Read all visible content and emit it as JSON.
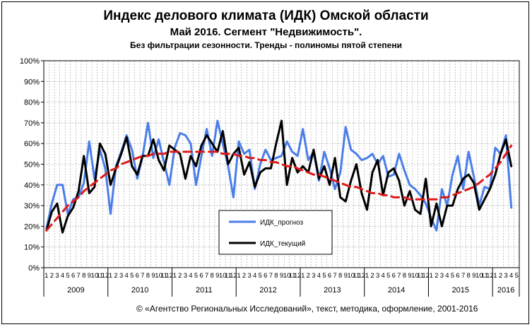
{
  "header": {
    "title": "Индекс делового климата (ИДК) Омской области",
    "subtitle": "Май 2016. Сегмент \"Недвижимость\".",
    "note": "Без фильтрации  сезонности. Тренды  -  полиномы  пятой  степени"
  },
  "footer": {
    "copyright": "© «Агентство Региональных Исследований», текст, методика, оформление, 2001-2016"
  },
  "chart_data": {
    "type": "line",
    "ylim": [
      0,
      100
    ],
    "yticks": [
      "0%",
      "10%",
      "20%",
      "30%",
      "40%",
      "50%",
      "60%",
      "70%",
      "80%",
      "90%",
      "100%"
    ],
    "years": [
      {
        "label": "2009",
        "months": 12
      },
      {
        "label": "2010",
        "months": 12
      },
      {
        "label": "2011",
        "months": 12
      },
      {
        "label": "2012",
        "months": 12
      },
      {
        "label": "2013",
        "months": 12
      },
      {
        "label": "2014",
        "months": 12
      },
      {
        "label": "2015",
        "months": 12
      },
      {
        "label": "2016",
        "months": 5
      }
    ],
    "series": [
      {
        "name": "ИДК_прогноз",
        "color": "#4a7ee8",
        "values": [
          19,
          31,
          40,
          40,
          26,
          33,
          34,
          41,
          61,
          43,
          57,
          48,
          26,
          49,
          56,
          64,
          57,
          43,
          54,
          70,
          53,
          62,
          51,
          40,
          58,
          65,
          64,
          60,
          40,
          54,
          67,
          54,
          71,
          60,
          49,
          34,
          61,
          55,
          57,
          38,
          50,
          57,
          52,
          53,
          54,
          61,
          56,
          54,
          67,
          52,
          56,
          42,
          56,
          48,
          38,
          46,
          68,
          57,
          55,
          52,
          53,
          55,
          50,
          54,
          44,
          45,
          55,
          47,
          40,
          38,
          35,
          31,
          24,
          18,
          38,
          30,
          45,
          54,
          38,
          56,
          44,
          30,
          39,
          38,
          58,
          55,
          64,
          29
        ]
      },
      {
        "name": "ИДК_текущий",
        "color": "#000000",
        "values": [
          18,
          27,
          31,
          17,
          25,
          29,
          37,
          54,
          36,
          39,
          60,
          55,
          40,
          48,
          55,
          63,
          49,
          45,
          54,
          54,
          62,
          52,
          47,
          59,
          57,
          55,
          43,
          54,
          49,
          59,
          64,
          60,
          56,
          66,
          50,
          55,
          58,
          45,
          51,
          39,
          46,
          48,
          48,
          60,
          71,
          40,
          53,
          46,
          49,
          46,
          57,
          43,
          49,
          40,
          53,
          34,
          32,
          42,
          50,
          36,
          28,
          46,
          52,
          35,
          46,
          48,
          42,
          30,
          37,
          28,
          26,
          43,
          20,
          31,
          20,
          30,
          30,
          38,
          43,
          45,
          41,
          28,
          33,
          38,
          45,
          55,
          62,
          49
        ]
      },
      {
        "name": "",
        "color": "#dd1a1a",
        "dashed": true,
        "values": [
          18,
          21,
          24,
          27,
          30,
          32,
          34,
          37,
          39,
          41,
          43,
          45,
          47,
          48,
          50,
          51,
          52,
          53,
          54,
          54,
          55,
          55,
          55,
          56,
          56,
          56,
          56,
          56,
          56,
          56,
          56,
          56,
          56,
          55,
          55,
          55,
          54,
          54,
          53,
          53,
          52,
          52,
          51,
          51,
          50,
          49,
          49,
          48,
          47,
          46,
          45,
          45,
          44,
          43,
          42,
          41,
          40,
          39,
          39,
          38,
          37,
          36,
          36,
          35,
          35,
          34,
          34,
          34,
          33,
          33,
          33,
          33,
          33,
          33,
          34,
          34,
          35,
          36,
          37,
          38,
          39,
          41,
          43,
          45,
          48,
          51,
          55,
          59
        ]
      }
    ],
    "legend": {
      "position": "bottom-center",
      "entries": [
        "ИДК_прогноз",
        "ИДК_текущий"
      ]
    },
    "grid": true
  }
}
